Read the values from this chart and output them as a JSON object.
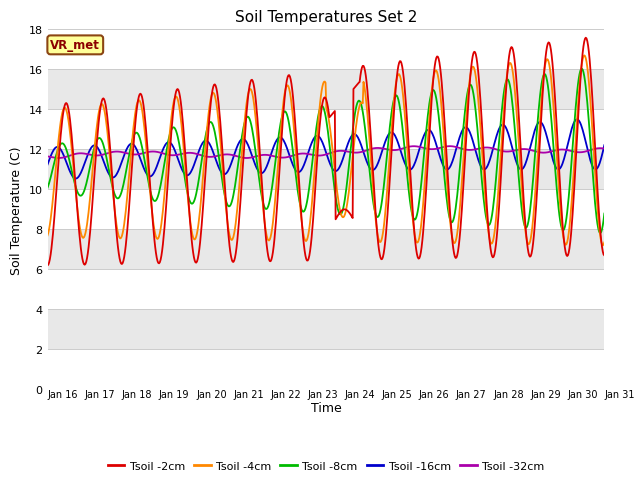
{
  "title": "Soil Temperatures Set 2",
  "xlabel": "Time",
  "ylabel": "Soil Temperature (C)",
  "ylim": [
    0,
    18
  ],
  "yticks": [
    0,
    2,
    4,
    6,
    8,
    10,
    12,
    14,
    16,
    18
  ],
  "xtick_labels": [
    "Jan 16",
    "Jan 17",
    "Jan 18",
    "Jan 19",
    "Jan 20",
    "Jan 21",
    "Jan 22",
    "Jan 23",
    "Jan 24",
    "Jan 25",
    "Jan 26",
    "Jan 27",
    "Jan 28",
    "Jan 29",
    "Jan 30",
    "Jan 31"
  ],
  "legend_labels": [
    "Tsoil -2cm",
    "Tsoil -4cm",
    "Tsoil -8cm",
    "Tsoil -16cm",
    "Tsoil -32cm"
  ],
  "line_colors": [
    "#dd0000",
    "#ff8800",
    "#00bb00",
    "#0000cc",
    "#aa00aa"
  ],
  "annotation_text": "VR_met",
  "annotation_box_facecolor": "#ffff99",
  "annotation_box_edgecolor": "#8B4513",
  "bg_light": "#f0f0f0",
  "bg_dark": "#dcdcdc",
  "title_fontsize": 11,
  "axis_label_fontsize": 9,
  "tick_fontsize": 8
}
